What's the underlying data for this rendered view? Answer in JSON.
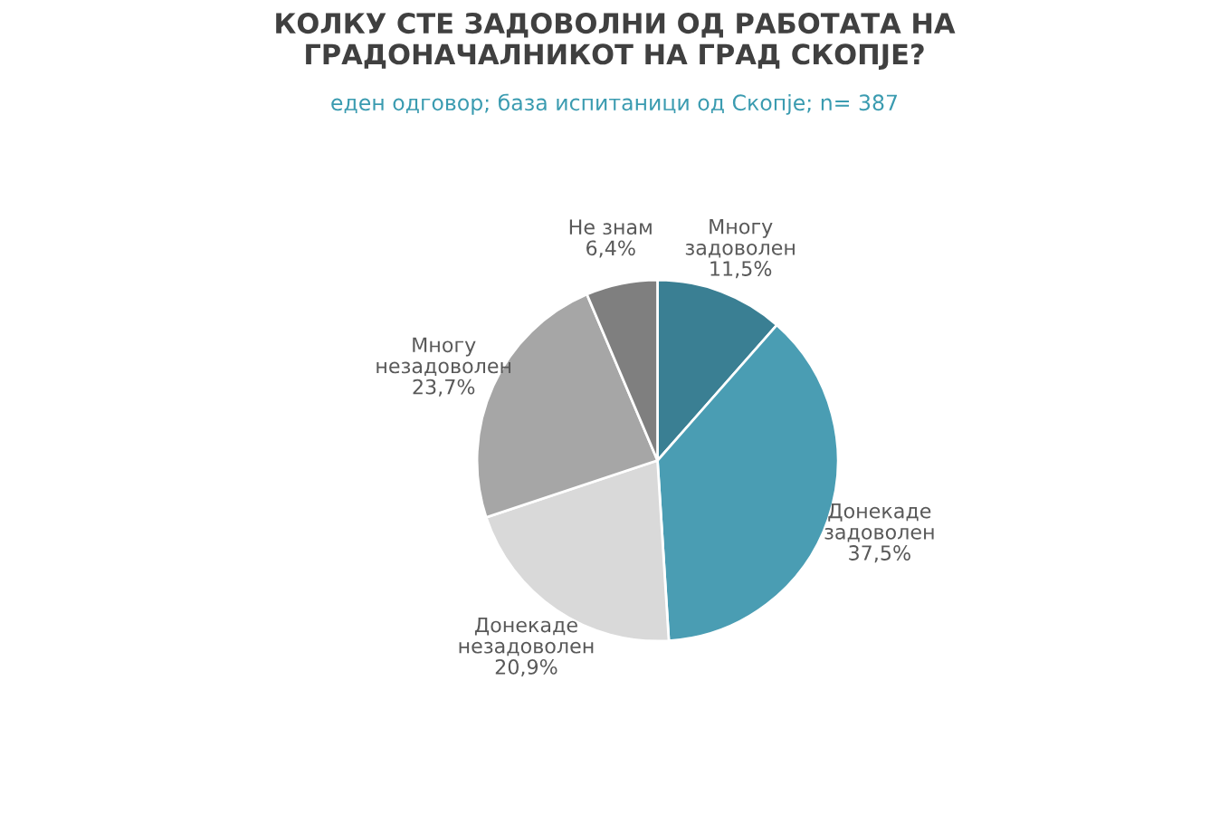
{
  "chart_data": {
    "type": "pie",
    "title": "КОЛКУ СТЕ ЗАДОВОЛНИ ОД РАБОТАТА НА\nГРАДОНАЧАЛНИКОТ НА ГРАД СКОПЈЕ?",
    "subtitle": "еден одговор; база испитаници од Скопје; n= 387",
    "categories": [
      "Многу задоволен",
      "Донекаде задоволен",
      "Донекаде незадоволен",
      "Многу незадоволен",
      "Не знам"
    ],
    "values": [
      11.5,
      37.5,
      20.9,
      23.7,
      6.4
    ],
    "value_labels": [
      "11,5%",
      "37,5%",
      "20,9%",
      "23,7%",
      "6,4%"
    ],
    "colors": [
      "#3a7f93",
      "#4a9db3",
      "#d9d9d9",
      "#a6a6a6",
      "#7f7f7f"
    ]
  }
}
